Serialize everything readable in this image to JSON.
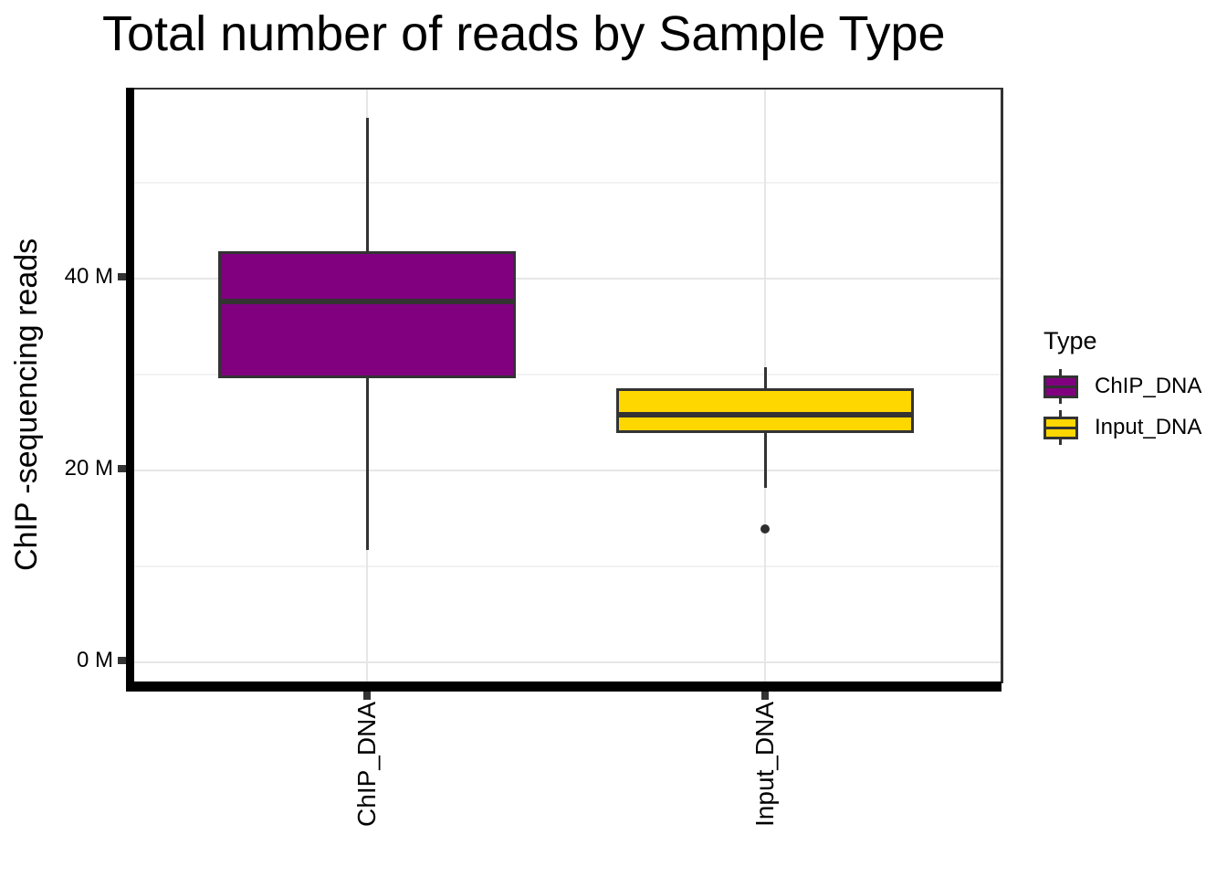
{
  "title": "Total number of reads by Sample Type",
  "chart_data": {
    "type": "boxplot",
    "title": "Total number of reads by Sample Type",
    "xlabel": "",
    "ylabel": "ChIP -sequencing reads",
    "unit": "M",
    "categories": [
      "ChIP_DNA",
      "Input_DNA"
    ],
    "series": [
      {
        "name": "ChIP_DNA",
        "fill": "#800080",
        "whisker_low": 11.7,
        "q1": 29.6,
        "median": 37.6,
        "q3": 42.9,
        "whisker_high": 56.8,
        "outliers": []
      },
      {
        "name": "Input_DNA",
        "fill": "#FFD700",
        "whisker_low": 18.2,
        "q1": 23.9,
        "median": 25.8,
        "q3": 28.6,
        "whisker_high": 30.8,
        "outliers": [
          13.9
        ]
      }
    ],
    "y_ticks": [
      {
        "value": 0,
        "label": "0 M"
      },
      {
        "value": 20,
        "label": "20 M"
      },
      {
        "value": 40,
        "label": "40 M"
      }
    ],
    "y_minor_gridlines": [
      10,
      30,
      50
    ],
    "ylim": [
      -2.2,
      59.7
    ],
    "grid": true,
    "legend": {
      "title": "Type",
      "position": "right",
      "entries": [
        {
          "label": "ChIP_DNA",
          "color": "#800080"
        },
        {
          "label": "Input_DNA",
          "color": "#FFD700"
        }
      ]
    },
    "colors": {
      "box_stroke": "#333333",
      "gridline_major": "#e6e6e6",
      "gridline_minor": "#f2f2f2",
      "axis_bar": "#000000"
    }
  }
}
